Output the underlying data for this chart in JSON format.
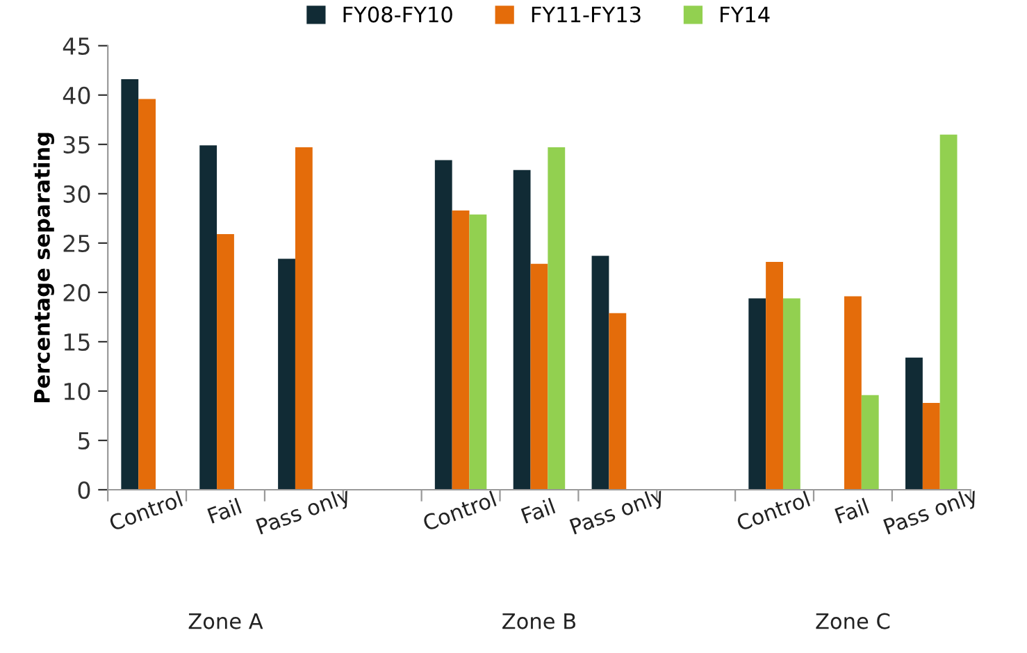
{
  "chart_data": {
    "type": "bar",
    "ylabel": "Percentage separating",
    "categories": [
      "Control",
      "Fail",
      "Pass only",
      null,
      "Control",
      "Fail",
      "Pass only",
      null,
      "Control",
      "Fail",
      "Pass only"
    ],
    "series": [
      {
        "name": "FY08-FY10",
        "color": "#112b35",
        "values": [
          41.6,
          34.9,
          23.4,
          null,
          33.4,
          32.4,
          23.7,
          null,
          19.4,
          null,
          13.4
        ]
      },
      {
        "name": "FY11-FY13",
        "color": "#e46c0a",
        "values": [
          39.6,
          25.9,
          34.7,
          null,
          28.3,
          22.9,
          17.9,
          null,
          23.1,
          19.6,
          8.8
        ]
      },
      {
        "name": "FY14",
        "color": "#92d050",
        "values": [
          null,
          null,
          null,
          null,
          27.9,
          34.7,
          null,
          null,
          19.4,
          9.6,
          36.0
        ]
      }
    ],
    "ylim": [
      0,
      45
    ],
    "yticks": [
      0,
      5,
      10,
      15,
      20,
      25,
      30,
      35,
      40,
      45
    ],
    "grid": false,
    "legend": "top",
    "annotations": [
      "Zone A",
      "Zone B",
      "Zone C"
    ]
  }
}
